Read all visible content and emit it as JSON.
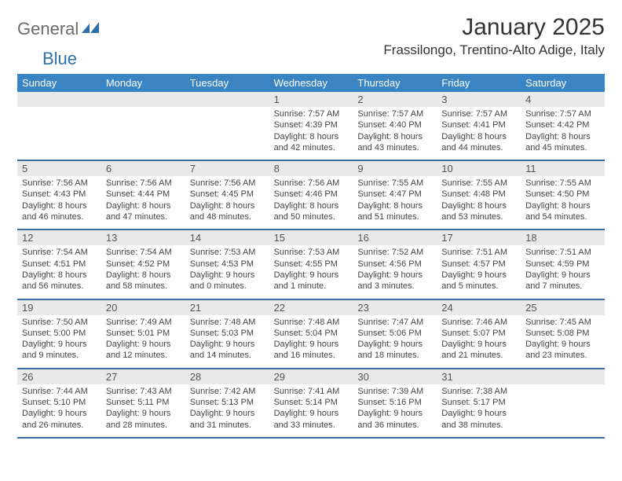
{
  "logo": {
    "general": "General",
    "blue": "Blue"
  },
  "title": "January 2025",
  "location": "Frassilongo, Trentino-Alto Adige, Italy",
  "day_headers": [
    "Sunday",
    "Monday",
    "Tuesday",
    "Wednesday",
    "Thursday",
    "Friday",
    "Saturday"
  ],
  "colors": {
    "header_bg": "#3b84c4",
    "header_text": "#ffffff",
    "daynum_bg": "#e9e9e9",
    "week_border": "#3b6fa0",
    "text": "#333333",
    "logo_gray": "#6b6b6b",
    "logo_blue": "#2f6fa8"
  },
  "typography": {
    "title_fontsize": 30,
    "location_fontsize": 17,
    "header_fontsize": 13,
    "daynum_fontsize": 13,
    "body_fontsize": 11
  },
  "layout": {
    "columns": 7,
    "rows": 5
  },
  "weeks": [
    [
      {
        "n": "",
        "sr": "",
        "ss": "",
        "dl1": "",
        "dl2": ""
      },
      {
        "n": "",
        "sr": "",
        "ss": "",
        "dl1": "",
        "dl2": ""
      },
      {
        "n": "",
        "sr": "",
        "ss": "",
        "dl1": "",
        "dl2": ""
      },
      {
        "n": "1",
        "sr": "Sunrise: 7:57 AM",
        "ss": "Sunset: 4:39 PM",
        "dl1": "Daylight: 8 hours",
        "dl2": "and 42 minutes."
      },
      {
        "n": "2",
        "sr": "Sunrise: 7:57 AM",
        "ss": "Sunset: 4:40 PM",
        "dl1": "Daylight: 8 hours",
        "dl2": "and 43 minutes."
      },
      {
        "n": "3",
        "sr": "Sunrise: 7:57 AM",
        "ss": "Sunset: 4:41 PM",
        "dl1": "Daylight: 8 hours",
        "dl2": "and 44 minutes."
      },
      {
        "n": "4",
        "sr": "Sunrise: 7:57 AM",
        "ss": "Sunset: 4:42 PM",
        "dl1": "Daylight: 8 hours",
        "dl2": "and 45 minutes."
      }
    ],
    [
      {
        "n": "5",
        "sr": "Sunrise: 7:56 AM",
        "ss": "Sunset: 4:43 PM",
        "dl1": "Daylight: 8 hours",
        "dl2": "and 46 minutes."
      },
      {
        "n": "6",
        "sr": "Sunrise: 7:56 AM",
        "ss": "Sunset: 4:44 PM",
        "dl1": "Daylight: 8 hours",
        "dl2": "and 47 minutes."
      },
      {
        "n": "7",
        "sr": "Sunrise: 7:56 AM",
        "ss": "Sunset: 4:45 PM",
        "dl1": "Daylight: 8 hours",
        "dl2": "and 48 minutes."
      },
      {
        "n": "8",
        "sr": "Sunrise: 7:56 AM",
        "ss": "Sunset: 4:46 PM",
        "dl1": "Daylight: 8 hours",
        "dl2": "and 50 minutes."
      },
      {
        "n": "9",
        "sr": "Sunrise: 7:55 AM",
        "ss": "Sunset: 4:47 PM",
        "dl1": "Daylight: 8 hours",
        "dl2": "and 51 minutes."
      },
      {
        "n": "10",
        "sr": "Sunrise: 7:55 AM",
        "ss": "Sunset: 4:48 PM",
        "dl1": "Daylight: 8 hours",
        "dl2": "and 53 minutes."
      },
      {
        "n": "11",
        "sr": "Sunrise: 7:55 AM",
        "ss": "Sunset: 4:50 PM",
        "dl1": "Daylight: 8 hours",
        "dl2": "and 54 minutes."
      }
    ],
    [
      {
        "n": "12",
        "sr": "Sunrise: 7:54 AM",
        "ss": "Sunset: 4:51 PM",
        "dl1": "Daylight: 8 hours",
        "dl2": "and 56 minutes."
      },
      {
        "n": "13",
        "sr": "Sunrise: 7:54 AM",
        "ss": "Sunset: 4:52 PM",
        "dl1": "Daylight: 8 hours",
        "dl2": "and 58 minutes."
      },
      {
        "n": "14",
        "sr": "Sunrise: 7:53 AM",
        "ss": "Sunset: 4:53 PM",
        "dl1": "Daylight: 9 hours",
        "dl2": "and 0 minutes."
      },
      {
        "n": "15",
        "sr": "Sunrise: 7:53 AM",
        "ss": "Sunset: 4:55 PM",
        "dl1": "Daylight: 9 hours",
        "dl2": "and 1 minute."
      },
      {
        "n": "16",
        "sr": "Sunrise: 7:52 AM",
        "ss": "Sunset: 4:56 PM",
        "dl1": "Daylight: 9 hours",
        "dl2": "and 3 minutes."
      },
      {
        "n": "17",
        "sr": "Sunrise: 7:51 AM",
        "ss": "Sunset: 4:57 PM",
        "dl1": "Daylight: 9 hours",
        "dl2": "and 5 minutes."
      },
      {
        "n": "18",
        "sr": "Sunrise: 7:51 AM",
        "ss": "Sunset: 4:59 PM",
        "dl1": "Daylight: 9 hours",
        "dl2": "and 7 minutes."
      }
    ],
    [
      {
        "n": "19",
        "sr": "Sunrise: 7:50 AM",
        "ss": "Sunset: 5:00 PM",
        "dl1": "Daylight: 9 hours",
        "dl2": "and 9 minutes."
      },
      {
        "n": "20",
        "sr": "Sunrise: 7:49 AM",
        "ss": "Sunset: 5:01 PM",
        "dl1": "Daylight: 9 hours",
        "dl2": "and 12 minutes."
      },
      {
        "n": "21",
        "sr": "Sunrise: 7:48 AM",
        "ss": "Sunset: 5:03 PM",
        "dl1": "Daylight: 9 hours",
        "dl2": "and 14 minutes."
      },
      {
        "n": "22",
        "sr": "Sunrise: 7:48 AM",
        "ss": "Sunset: 5:04 PM",
        "dl1": "Daylight: 9 hours",
        "dl2": "and 16 minutes."
      },
      {
        "n": "23",
        "sr": "Sunrise: 7:47 AM",
        "ss": "Sunset: 5:06 PM",
        "dl1": "Daylight: 9 hours",
        "dl2": "and 18 minutes."
      },
      {
        "n": "24",
        "sr": "Sunrise: 7:46 AM",
        "ss": "Sunset: 5:07 PM",
        "dl1": "Daylight: 9 hours",
        "dl2": "and 21 minutes."
      },
      {
        "n": "25",
        "sr": "Sunrise: 7:45 AM",
        "ss": "Sunset: 5:08 PM",
        "dl1": "Daylight: 9 hours",
        "dl2": "and 23 minutes."
      }
    ],
    [
      {
        "n": "26",
        "sr": "Sunrise: 7:44 AM",
        "ss": "Sunset: 5:10 PM",
        "dl1": "Daylight: 9 hours",
        "dl2": "and 26 minutes."
      },
      {
        "n": "27",
        "sr": "Sunrise: 7:43 AM",
        "ss": "Sunset: 5:11 PM",
        "dl1": "Daylight: 9 hours",
        "dl2": "and 28 minutes."
      },
      {
        "n": "28",
        "sr": "Sunrise: 7:42 AM",
        "ss": "Sunset: 5:13 PM",
        "dl1": "Daylight: 9 hours",
        "dl2": "and 31 minutes."
      },
      {
        "n": "29",
        "sr": "Sunrise: 7:41 AM",
        "ss": "Sunset: 5:14 PM",
        "dl1": "Daylight: 9 hours",
        "dl2": "and 33 minutes."
      },
      {
        "n": "30",
        "sr": "Sunrise: 7:39 AM",
        "ss": "Sunset: 5:16 PM",
        "dl1": "Daylight: 9 hours",
        "dl2": "and 36 minutes."
      },
      {
        "n": "31",
        "sr": "Sunrise: 7:38 AM",
        "ss": "Sunset: 5:17 PM",
        "dl1": "Daylight: 9 hours",
        "dl2": "and 38 minutes."
      },
      {
        "n": "",
        "sr": "",
        "ss": "",
        "dl1": "",
        "dl2": ""
      }
    ]
  ]
}
